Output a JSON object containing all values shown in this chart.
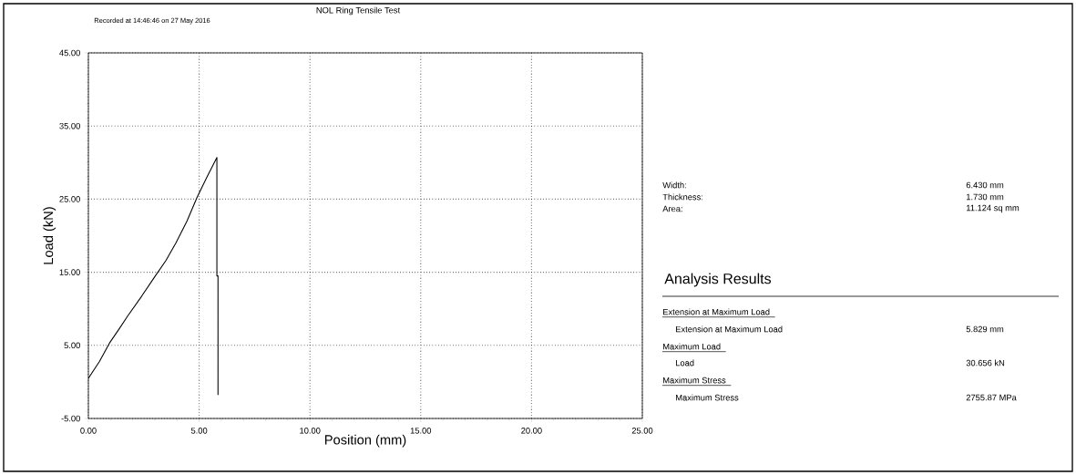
{
  "chart_data": {
    "type": "line",
    "title": "NOL Ring Tensile Test",
    "subtitle": "Recorded at 14:46:46 on 27 May 2016",
    "xlabel": "Position (mm)",
    "ylabel": "Load (kN)",
    "series": [
      {
        "color": "#000000",
        "x": [
          0,
          0.5,
          0.95,
          1.4,
          1.77,
          2.4,
          3.0,
          3.5,
          3.95,
          4.45,
          4.9,
          5.35,
          5.8,
          5.8,
          5.85,
          5.85
        ],
        "values": [
          0.5,
          2.8,
          5.3,
          7.3,
          9.0,
          11.7,
          14.4,
          16.6,
          19.0,
          22.0,
          25.2,
          28.0,
          30.7,
          14.5,
          14.5,
          -1.8
        ]
      }
    ],
    "xlim": [
      0,
      25
    ],
    "ylim": [
      -5,
      45
    ],
    "xticks": [
      {
        "value": 0,
        "label": "0.00"
      },
      {
        "value": 5,
        "label": "5.00"
      },
      {
        "value": 10,
        "label": "10.00"
      },
      {
        "value": 15,
        "label": "15.00"
      },
      {
        "value": 20,
        "label": "20.00"
      },
      {
        "value": 25,
        "label": "25.00"
      }
    ],
    "yticks": [
      {
        "value": -5,
        "label": "-5.00"
      },
      {
        "value": 5,
        "label": "5.00"
      },
      {
        "value": 15,
        "label": "15.00"
      },
      {
        "value": 25,
        "label": "25.00"
      },
      {
        "value": 35,
        "label": "35.00"
      },
      {
        "value": 45,
        "label": "45.00"
      }
    ],
    "grid": true,
    "marker": "none",
    "line_style": "solid",
    "annotations": [
      "Width:",
      "6.430 mm",
      "Thickness:",
      "1.730 mm",
      "Area:",
      "11.124 sq mm",
      "Analysis Results",
      "Extension at Maximum Load",
      "Extension at Maximum Load",
      "5.829 mm",
      "Maximum Load",
      "Load",
      "30.656 kN",
      "Maximum Stress",
      "Maximum Stress",
      "2755.87 MPa"
    ]
  }
}
